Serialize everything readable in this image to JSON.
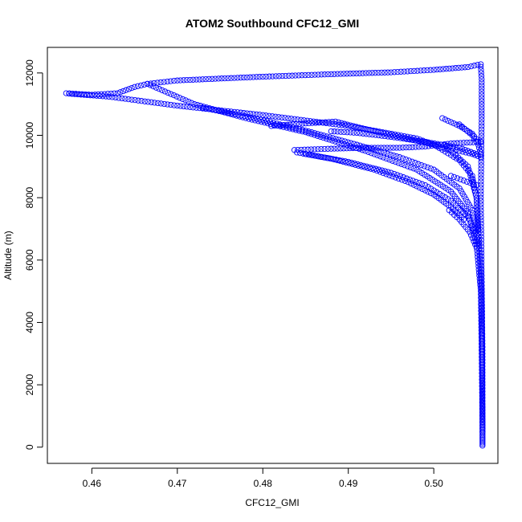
{
  "chart_data": {
    "type": "scatter",
    "title": "ATOM2 Southbound CFC12_GMI",
    "xlabel": "CFC12_GMI",
    "ylabel": "Altitude (m)",
    "xlim": [
      0.4548,
      0.5075
    ],
    "ylim": [
      -520,
      12820
    ],
    "xticks": [
      {
        "value": 0.46,
        "label": "0.46"
      },
      {
        "value": 0.47,
        "label": "0.47"
      },
      {
        "value": 0.48,
        "label": "0.48"
      },
      {
        "value": 0.49,
        "label": "0.49"
      },
      {
        "value": 0.5,
        "label": "0.50"
      }
    ],
    "yticks": [
      {
        "value": 0,
        "label": "0"
      },
      {
        "value": 2000,
        "label": "2000"
      },
      {
        "value": 4000,
        "label": "4000"
      },
      {
        "value": 6000,
        "label": "6000"
      },
      {
        "value": 8000,
        "label": "8000"
      },
      {
        "value": 10000,
        "label": "10000"
      },
      {
        "value": 12000,
        "label": "12000"
      }
    ],
    "grid": false,
    "legend": "none",
    "marker": "open-circle",
    "color": "#0000ff",
    "series": [
      {
        "path": [
          [
            0.5057,
            50
          ],
          [
            0.5057,
            3000
          ],
          [
            0.5056,
            5500
          ],
          [
            0.5055,
            8000
          ],
          [
            0.5056,
            10500
          ],
          [
            0.5056,
            11800
          ],
          [
            0.5055,
            12200
          ],
          [
            0.5055,
            12280
          ],
          [
            0.504,
            12190
          ],
          [
            0.5,
            12100
          ],
          [
            0.495,
            12020
          ],
          [
            0.488,
            11960
          ],
          [
            0.48,
            11880
          ],
          [
            0.47,
            11760
          ],
          [
            0.4665,
            11650
          ],
          [
            0.465,
            11550
          ],
          [
            0.463,
            11350
          ],
          [
            0.46,
            11300
          ],
          [
            0.457,
            11350
          ],
          [
            0.458,
            11320
          ],
          [
            0.462,
            11240
          ],
          [
            0.47,
            10950
          ],
          [
            0.48,
            10650
          ],
          [
            0.49,
            10300
          ],
          [
            0.498,
            9900
          ],
          [
            0.502,
            9500
          ],
          [
            0.504,
            9000
          ],
          [
            0.505,
            8000
          ],
          [
            0.5056,
            5000
          ],
          [
            0.5057,
            1000
          ],
          [
            0.5057,
            100
          ]
        ]
      },
      {
        "path": [
          [
            0.4665,
            11650
          ],
          [
            0.472,
            11000
          ],
          [
            0.478,
            10550
          ],
          [
            0.485,
            10100
          ],
          [
            0.492,
            9500
          ],
          [
            0.498,
            8900
          ],
          [
            0.502,
            8200
          ],
          [
            0.504,
            7500
          ],
          [
            0.505,
            6500
          ],
          [
            0.5055,
            5000
          ],
          [
            0.5056,
            3000
          ],
          [
            0.5057,
            500
          ]
        ]
      },
      {
        "path": [
          [
            0.481,
            10300
          ],
          [
            0.485,
            10380
          ],
          [
            0.4885,
            10440
          ],
          [
            0.492,
            10200
          ],
          [
            0.496,
            9950
          ],
          [
            0.5,
            9700
          ],
          [
            0.503,
            9200
          ],
          [
            0.5045,
            8700
          ],
          [
            0.505,
            8000
          ],
          [
            0.5052,
            7000
          ]
        ]
      },
      {
        "path": [
          [
            0.4837,
            9530
          ],
          [
            0.488,
            9570
          ],
          [
            0.492,
            9600
          ],
          [
            0.496,
            9600
          ],
          [
            0.499,
            9640
          ],
          [
            0.502,
            9740
          ],
          [
            0.505,
            9780
          ],
          [
            0.5055,
            9800
          ]
        ]
      },
      {
        "path": [
          [
            0.488,
            10130
          ],
          [
            0.491,
            10080
          ],
          [
            0.495,
            9950
          ],
          [
            0.499,
            9790
          ],
          [
            0.503,
            9600
          ],
          [
            0.505,
            9400
          ]
        ]
      },
      {
        "path": [
          [
            0.473,
            10880
          ],
          [
            0.479,
            10550
          ],
          [
            0.485,
            10150
          ],
          [
            0.491,
            9700
          ],
          [
            0.496,
            9300
          ],
          [
            0.5,
            8900
          ],
          [
            0.503,
            8300
          ],
          [
            0.5045,
            7600
          ],
          [
            0.5052,
            6500
          ]
        ]
      },
      {
        "path": [
          [
            0.484,
            9450
          ],
          [
            0.488,
            9250
          ],
          [
            0.493,
            8900
          ],
          [
            0.497,
            8500
          ],
          [
            0.5,
            8100
          ],
          [
            0.502,
            7700
          ],
          [
            0.5035,
            7300
          ]
        ]
      },
      {
        "path": [
          [
            0.485,
            9400
          ],
          [
            0.49,
            9150
          ],
          [
            0.495,
            8800
          ],
          [
            0.499,
            8400
          ],
          [
            0.502,
            7900
          ],
          [
            0.504,
            7400
          ],
          [
            0.505,
            6800
          ]
        ]
      },
      {
        "path": [
          [
            0.501,
            10550
          ],
          [
            0.503,
            10300
          ],
          [
            0.5045,
            10050
          ],
          [
            0.5052,
            9800
          ]
        ]
      },
      {
        "path": [
          [
            0.503,
            10350
          ],
          [
            0.5045,
            10000
          ],
          [
            0.5052,
            9700
          ],
          [
            0.5055,
            9400
          ]
        ]
      },
      {
        "path": [
          [
            0.5015,
            9650
          ],
          [
            0.503,
            9500
          ],
          [
            0.5045,
            9400
          ],
          [
            0.5055,
            9300
          ]
        ]
      },
      {
        "path": [
          [
            0.502,
            8700
          ],
          [
            0.5035,
            8550
          ],
          [
            0.505,
            8400
          ]
        ]
      },
      {
        "path": [
          [
            0.5018,
            7600
          ],
          [
            0.503,
            7300
          ],
          [
            0.5042,
            6900
          ],
          [
            0.505,
            6400
          ]
        ]
      }
    ]
  }
}
